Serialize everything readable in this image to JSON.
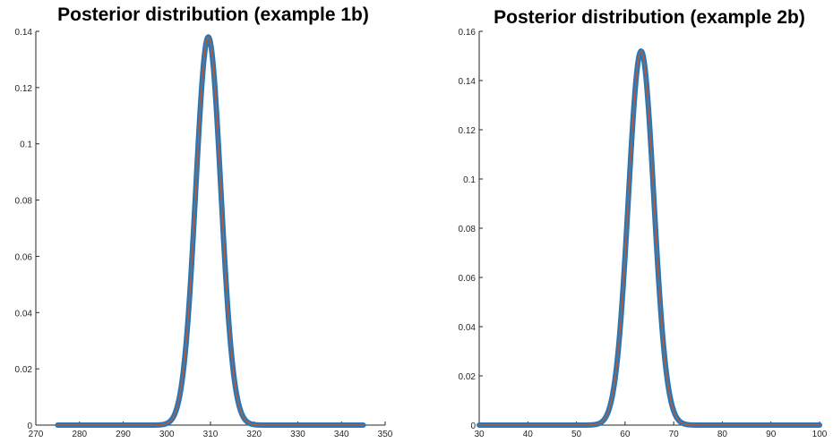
{
  "chart_data": [
    {
      "type": "line",
      "title": "Posterior distribution (example 1b)",
      "xlim": [
        270,
        350
      ],
      "ylim": [
        0,
        0.14
      ],
      "xticks": [
        270,
        280,
        290,
        300,
        310,
        320,
        330,
        340,
        350
      ],
      "yticks": [
        0,
        0.02,
        0.04,
        0.06,
        0.08,
        0.1,
        0.12,
        0.14
      ],
      "grid": false,
      "series": [
        {
          "kind": "gaussian",
          "x_start": 275,
          "x_end": 345,
          "mean": 309.5,
          "sd": 2.88,
          "peak": 0.138,
          "color": "#2878b8",
          "style": "thick-markers"
        },
        {
          "kind": "gaussian",
          "x_start": 275,
          "x_end": 345,
          "mean": 309.5,
          "sd": 2.88,
          "peak": 0.138,
          "color": "#d95319",
          "style": "thin-line"
        }
      ]
    },
    {
      "type": "line",
      "title": "Posterior distribution (example 2b)",
      "xlim": [
        30,
        100
      ],
      "ylim": [
        0,
        0.16
      ],
      "xticks": [
        30,
        40,
        50,
        60,
        70,
        80,
        90,
        100
      ],
      "yticks": [
        0,
        0.02,
        0.04,
        0.06,
        0.08,
        0.1,
        0.12,
        0.14,
        0.16
      ],
      "grid": false,
      "series": [
        {
          "kind": "gaussian",
          "x_start": 30,
          "x_end": 100,
          "mean": 63.3,
          "sd": 2.62,
          "peak": 0.152,
          "color": "#2878b8",
          "style": "thick-markers"
        },
        {
          "kind": "gaussian",
          "x_start": 30,
          "x_end": 100,
          "mean": 63.3,
          "sd": 2.62,
          "peak": 0.152,
          "color": "#d95319",
          "style": "thin-line"
        }
      ]
    }
  ]
}
